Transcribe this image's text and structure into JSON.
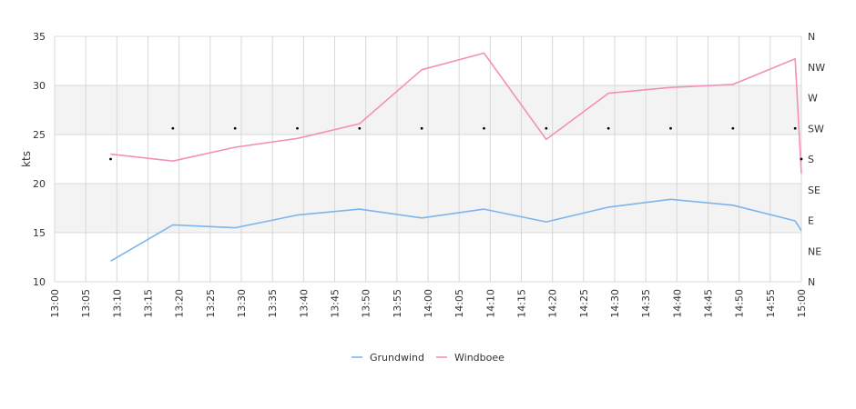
{
  "chart_data": {
    "type": "line",
    "ylabel": "kts",
    "ylim": [
      10,
      35
    ],
    "y_ticks": [
      "10",
      "15",
      "20",
      "25",
      "30",
      "35"
    ],
    "x_ticks": [
      "13:00",
      "13:05",
      "13:10",
      "13:15",
      "13:20",
      "13:25",
      "13:30",
      "13:35",
      "13:40",
      "13:45",
      "13:50",
      "13:55",
      "14:00",
      "14:05",
      "14:10",
      "14:15",
      "14:20",
      "14:25",
      "14:30",
      "14:35",
      "14:40",
      "14:45",
      "14:50",
      "14:55",
      "15:00"
    ],
    "x_range": [
      "13:00",
      "15:00"
    ],
    "direction_ticks": [
      "N",
      "NE",
      "E",
      "SE",
      "S",
      "SW",
      "W",
      "NW",
      "N"
    ],
    "grid": true,
    "bands": [
      [
        15,
        20
      ],
      [
        25,
        30
      ]
    ],
    "legend_position": "bottom",
    "series": [
      {
        "name": "Grundwind",
        "color": "#7cb5ec",
        "points": [
          [
            "13:09",
            12.1
          ],
          [
            "13:19",
            15.8
          ],
          [
            "13:29",
            15.5
          ],
          [
            "13:39",
            16.8
          ],
          [
            "13:49",
            17.4
          ],
          [
            "13:59",
            16.5
          ],
          [
            "14:09",
            17.4
          ],
          [
            "14:19",
            16.1
          ],
          [
            "14:29",
            17.6
          ],
          [
            "14:39",
            18.4
          ],
          [
            "14:49",
            17.8
          ],
          [
            "14:59",
            16.2
          ],
          [
            "15:00",
            15.2
          ]
        ]
      },
      {
        "name": "Windboee",
        "color": "#f48fbb",
        "points": [
          [
            "13:09",
            23.0
          ],
          [
            "13:19",
            22.3
          ],
          [
            "13:29",
            23.7
          ],
          [
            "13:39",
            24.6
          ],
          [
            "13:49",
            26.1
          ],
          [
            "13:59",
            31.6
          ],
          [
            "14:09",
            33.3
          ],
          [
            "14:19",
            24.5
          ],
          [
            "14:29",
            29.2
          ],
          [
            "14:39",
            29.8
          ],
          [
            "14:49",
            30.1
          ],
          [
            "14:59",
            32.7
          ],
          [
            "15:00",
            21.0
          ]
        ]
      }
    ],
    "direction_points": [
      [
        "13:09",
        "S"
      ],
      [
        "13:19",
        "SW"
      ],
      [
        "13:29",
        "SW"
      ],
      [
        "13:39",
        "SW"
      ],
      [
        "13:49",
        "SW"
      ],
      [
        "13:59",
        "SW"
      ],
      [
        "14:09",
        "SW"
      ],
      [
        "14:19",
        "SW"
      ],
      [
        "14:29",
        "SW"
      ],
      [
        "14:39",
        "SW"
      ],
      [
        "14:49",
        "SW"
      ],
      [
        "14:59",
        "SW"
      ],
      [
        "15:00",
        "S"
      ]
    ]
  }
}
